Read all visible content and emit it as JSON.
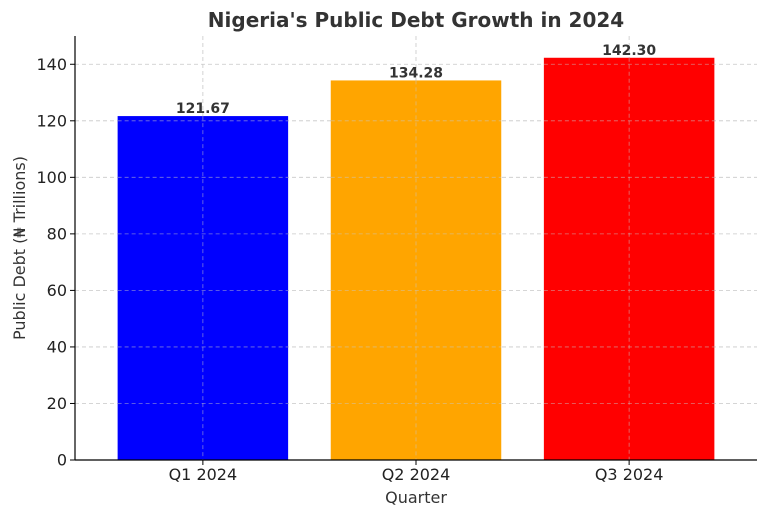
{
  "chart_data": {
    "type": "bar",
    "title": "Nigeria's Public Debt Growth in 2024",
    "xlabel": "Quarter",
    "ylabel": "Public Debt (₦ Trillions)",
    "categories": [
      "Q1 2024",
      "Q2 2024",
      "Q3 2024"
    ],
    "values": [
      121.67,
      134.28,
      142.3
    ],
    "data_labels": [
      "121.67",
      "134.28",
      "142.30"
    ],
    "colors": [
      "#0000ff",
      "#ffa500",
      "#ff0000"
    ],
    "ylim": [
      0,
      150
    ],
    "yticks": [
      0,
      20,
      40,
      60,
      80,
      100,
      120,
      140
    ],
    "grid": true,
    "legend": "none"
  }
}
